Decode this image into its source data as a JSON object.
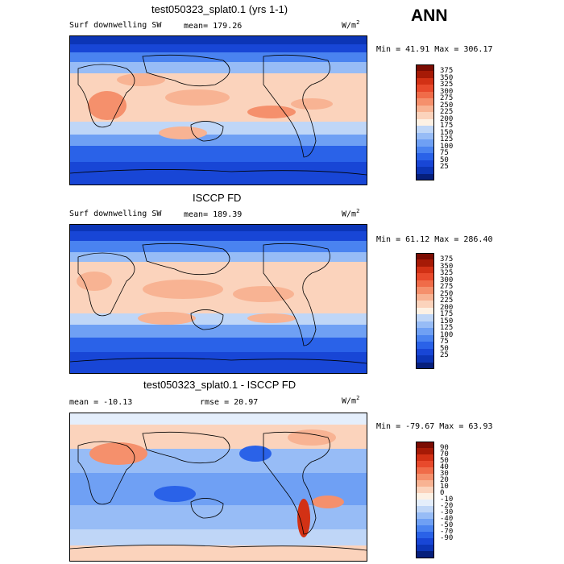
{
  "season": "ANN",
  "colors": {
    "abs": [
      "#061f7b",
      "#0c35b6",
      "#1846d6",
      "#2a62e8",
      "#4a83f0",
      "#6fa0f4",
      "#97bcf6",
      "#bfd6f7",
      "#fdf1e4",
      "#fbd3bc",
      "#f8b393",
      "#f5906c",
      "#f06c49",
      "#e84a2c",
      "#d23115",
      "#a61a06",
      "#7b0c02"
    ],
    "diff": [
      "#061f7b",
      "#0c35b6",
      "#1846d6",
      "#2a62e8",
      "#4a83f0",
      "#6fa0f4",
      "#97bcf6",
      "#bfd6f7",
      "#e4eefb",
      "#fdf1e4",
      "#fbd3bc",
      "#f8b393",
      "#f5906c",
      "#f06c49",
      "#e84a2c",
      "#d23115",
      "#a61a06",
      "#7b0c02"
    ]
  },
  "panels": [
    {
      "title": "test050323_splat0.1 (yrs 1-1)",
      "left_label": "Surf downwelling SW",
      "mean_label": "mean= 179.26",
      "rmse_label": "",
      "units": "W/m",
      "units_sup": "2",
      "minmax": "Min =  41.91 Max = 306.17",
      "legend_labels": [
        "375",
        "350",
        "325",
        "300",
        "275",
        "250",
        "225",
        "200",
        "175",
        "150",
        "125",
        "100",
        "75",
        "50",
        "25"
      ],
      "legend_type": "abs"
    },
    {
      "title": "ISCCP FD",
      "left_label": "Surf downwelling SW",
      "mean_label": "mean= 189.39",
      "rmse_label": "",
      "units": "W/m",
      "units_sup": "2",
      "minmax": "Min =  61.12 Max = 286.40",
      "legend_labels": [
        "375",
        "350",
        "325",
        "300",
        "275",
        "250",
        "225",
        "200",
        "175",
        "150",
        "125",
        "100",
        "75",
        "50",
        "25"
      ],
      "legend_type": "abs"
    },
    {
      "title": "test050323_splat0.1 - ISCCP FD",
      "left_label": "mean = -10.13",
      "mean_label": "",
      "rmse_label": "rmse =  20.97",
      "units": "W/m",
      "units_sup": "2",
      "minmax": "Min = -79.67 Max =  63.93",
      "legend_labels": [
        "90",
        "70",
        "50",
        "40",
        "30",
        "20",
        "10",
        "0",
        "-10",
        "-20",
        "-30",
        "-40",
        "-50",
        "-70",
        "-90"
      ],
      "legend_type": "diff"
    }
  ]
}
